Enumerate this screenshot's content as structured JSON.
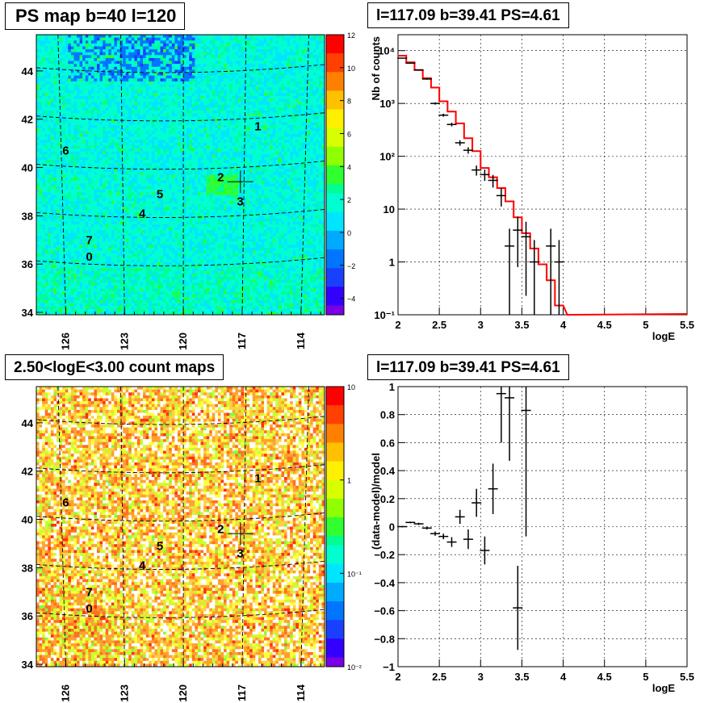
{
  "colors": {
    "data": "#000000",
    "model": "#ff0000"
  },
  "panels": {
    "ps_map": {
      "title": "PS map b=40 l=120",
      "x_ticks": [
        "126",
        "123",
        "120",
        "117",
        "114"
      ],
      "y_ticks": [
        "44",
        "42",
        "40",
        "38",
        "36",
        "34"
      ],
      "colorbar_ticks": [
        "12",
        "10",
        "8",
        "6",
        "4",
        "2",
        "0",
        "−2",
        "−4"
      ],
      "source_labels": [
        "1",
        "6",
        "2",
        "5",
        "3",
        "4",
        "7",
        "0"
      ]
    },
    "count_map": {
      "title": "2.50<logE<3.00 count maps",
      "x_ticks": [
        "126",
        "123",
        "120",
        "117",
        "114"
      ],
      "y_ticks": [
        "44",
        "42",
        "40",
        "38",
        "36",
        "34"
      ],
      "colorbar_ticks": [
        "10",
        "1",
        "10⁻¹",
        "10⁻²"
      ],
      "source_labels": [
        "1",
        "6",
        "2",
        "5",
        "3",
        "4",
        "7",
        "0"
      ]
    },
    "spectrum": {
      "title": "l=117.09 b=39.41 PS=4.61",
      "xlabel": "logE",
      "ylabel": "Nb of counts",
      "x_ticks": [
        "2",
        "2.5",
        "3",
        "3.5",
        "4",
        "4.5",
        "5",
        "5.5"
      ],
      "y_ticks": [
        "10⁴",
        "10³",
        "10²",
        "10",
        "1",
        "10⁻¹"
      ]
    },
    "residual": {
      "title": "l=117.09 b=39.41 PS=4.61",
      "xlabel": "logE",
      "ylabel": "(data-model)/model",
      "x_ticks": [
        "2",
        "2.5",
        "3",
        "3.5",
        "4",
        "4.5",
        "5",
        "5.5"
      ],
      "y_ticks": [
        "1",
        "0.8",
        "0.6",
        "0.4",
        "0.2",
        "0",
        "−0.2",
        "−0.4",
        "−0.6",
        "−0.8",
        "−1"
      ]
    }
  },
  "chart_data": [
    {
      "type": "heatmap",
      "title": "PS map b=40 l=120",
      "xlim": [
        127.5,
        112.8
      ],
      "ylim": [
        33.9,
        45.5
      ],
      "zlim": [
        -5,
        12
      ],
      "colorbar": "linear",
      "sources": [
        {
          "label": "1",
          "l": 116.2,
          "b": 41.7
        },
        {
          "label": "6",
          "l": 126.0,
          "b": 40.7
        },
        {
          "label": "2",
          "l": 118.1,
          "b": 39.6
        },
        {
          "label": "5",
          "l": 121.2,
          "b": 38.9
        },
        {
          "label": "3",
          "l": 117.1,
          "b": 38.6
        },
        {
          "label": "4",
          "l": 122.1,
          "b": 38.1
        },
        {
          "label": "7",
          "l": 124.8,
          "b": 37.0
        },
        {
          "label": "0",
          "l": 124.8,
          "b": 36.3
        }
      ],
      "marker": {
        "l": 117.09,
        "b": 39.41
      }
    },
    {
      "type": "heatmap",
      "title": "2.50<logE<3.00 count maps",
      "xlim": [
        127.5,
        112.8
      ],
      "ylim": [
        33.9,
        45.5
      ],
      "zlim": [
        0.01,
        10
      ],
      "colorbar": "log",
      "sources": [
        {
          "label": "1",
          "l": 116.2,
          "b": 41.7
        },
        {
          "label": "6",
          "l": 126.0,
          "b": 40.7
        },
        {
          "label": "2",
          "l": 118.1,
          "b": 39.6
        },
        {
          "label": "5",
          "l": 121.2,
          "b": 38.9
        },
        {
          "label": "3",
          "l": 117.1,
          "b": 38.6
        },
        {
          "label": "4",
          "l": 122.1,
          "b": 38.1
        },
        {
          "label": "7",
          "l": 124.8,
          "b": 37.0
        },
        {
          "label": "0",
          "l": 124.8,
          "b": 36.3
        }
      ],
      "marker": {
        "l": 117.09,
        "b": 39.41
      }
    },
    {
      "type": "line",
      "title": "l=117.09 b=39.41 PS=4.61",
      "xlabel": "logE",
      "ylabel": "Nb of counts",
      "xlim": [
        2,
        5.5
      ],
      "ylim": [
        0.1,
        20000
      ],
      "yscale": "log",
      "grid": true,
      "series": [
        {
          "kind": "points",
          "x": [
            2.05,
            2.15,
            2.25,
            2.35,
            2.45,
            2.55,
            2.65,
            2.75,
            2.85,
            2.95,
            3.05,
            3.15,
            3.25,
            3.35,
            3.45,
            3.55,
            3.65,
            3.85,
            3.95
          ],
          "y": [
            7200,
            5800,
            4300,
            2900,
            1000,
            600,
            400,
            180,
            130,
            55,
            45,
            35,
            18,
            2,
            4,
            3,
            1,
            2,
            1
          ]
        },
        {
          "kind": "step",
          "x": [
            2.0,
            2.1,
            2.2,
            2.3,
            2.4,
            2.5,
            2.6,
            2.7,
            2.8,
            2.9,
            3.0,
            3.1,
            3.2,
            3.3,
            3.4,
            3.5,
            3.6,
            3.7,
            3.8,
            3.9,
            4.0
          ],
          "y": [
            8000,
            6000,
            4300,
            3000,
            2000,
            1100,
            700,
            420,
            220,
            125,
            60,
            40,
            25,
            14,
            7,
            3.5,
            1.8,
            0.9,
            0.45,
            0.15,
            0.1
          ]
        }
      ]
    },
    {
      "type": "scatter",
      "title": "l=117.09 b=39.41 PS=4.61",
      "xlabel": "logE",
      "ylabel": "(data-model)/model",
      "xlim": [
        2,
        5.5
      ],
      "ylim": [
        -1,
        1
      ],
      "grid": true,
      "series": [
        {
          "x": [
            2.05,
            2.15,
            2.25,
            2.35,
            2.45,
            2.55,
            2.65,
            2.75,
            2.85,
            2.95,
            3.05,
            3.15,
            3.25,
            3.35,
            3.45,
            3.55
          ],
          "y": [
            0.0,
            0.03,
            0.02,
            -0.01,
            -0.05,
            -0.07,
            -0.11,
            0.07,
            -0.09,
            0.17,
            -0.17,
            0.27,
            0.95,
            0.92,
            -0.58,
            0.83
          ],
          "err": [
            0.005,
            0.006,
            0.008,
            0.01,
            0.015,
            0.02,
            0.035,
            0.05,
            0.07,
            0.1,
            0.1,
            0.18,
            0.35,
            0.45,
            0.3,
            0.9
          ]
        }
      ]
    }
  ]
}
